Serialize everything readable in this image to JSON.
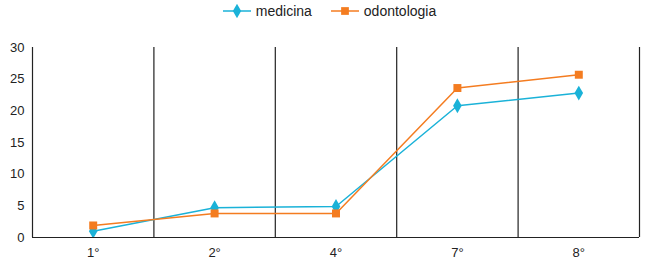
{
  "chart_data": {
    "type": "line",
    "categories": [
      "1°",
      "2°",
      "4°",
      "7°",
      "8°"
    ],
    "series": [
      {
        "name": "medicina",
        "color": "#1ab2d8",
        "marker": "diamond",
        "values": [
          1.0,
          4.7,
          4.9,
          20.8,
          22.8
        ]
      },
      {
        "name": "odontologia",
        "color": "#f47c20",
        "marker": "square",
        "values": [
          1.9,
          3.8,
          3.8,
          23.6,
          25.7
        ]
      }
    ],
    "ylim": [
      0,
      30
    ],
    "yticks": [
      0,
      5,
      10,
      15,
      20,
      25,
      30
    ],
    "grid": true,
    "legend": "top"
  }
}
